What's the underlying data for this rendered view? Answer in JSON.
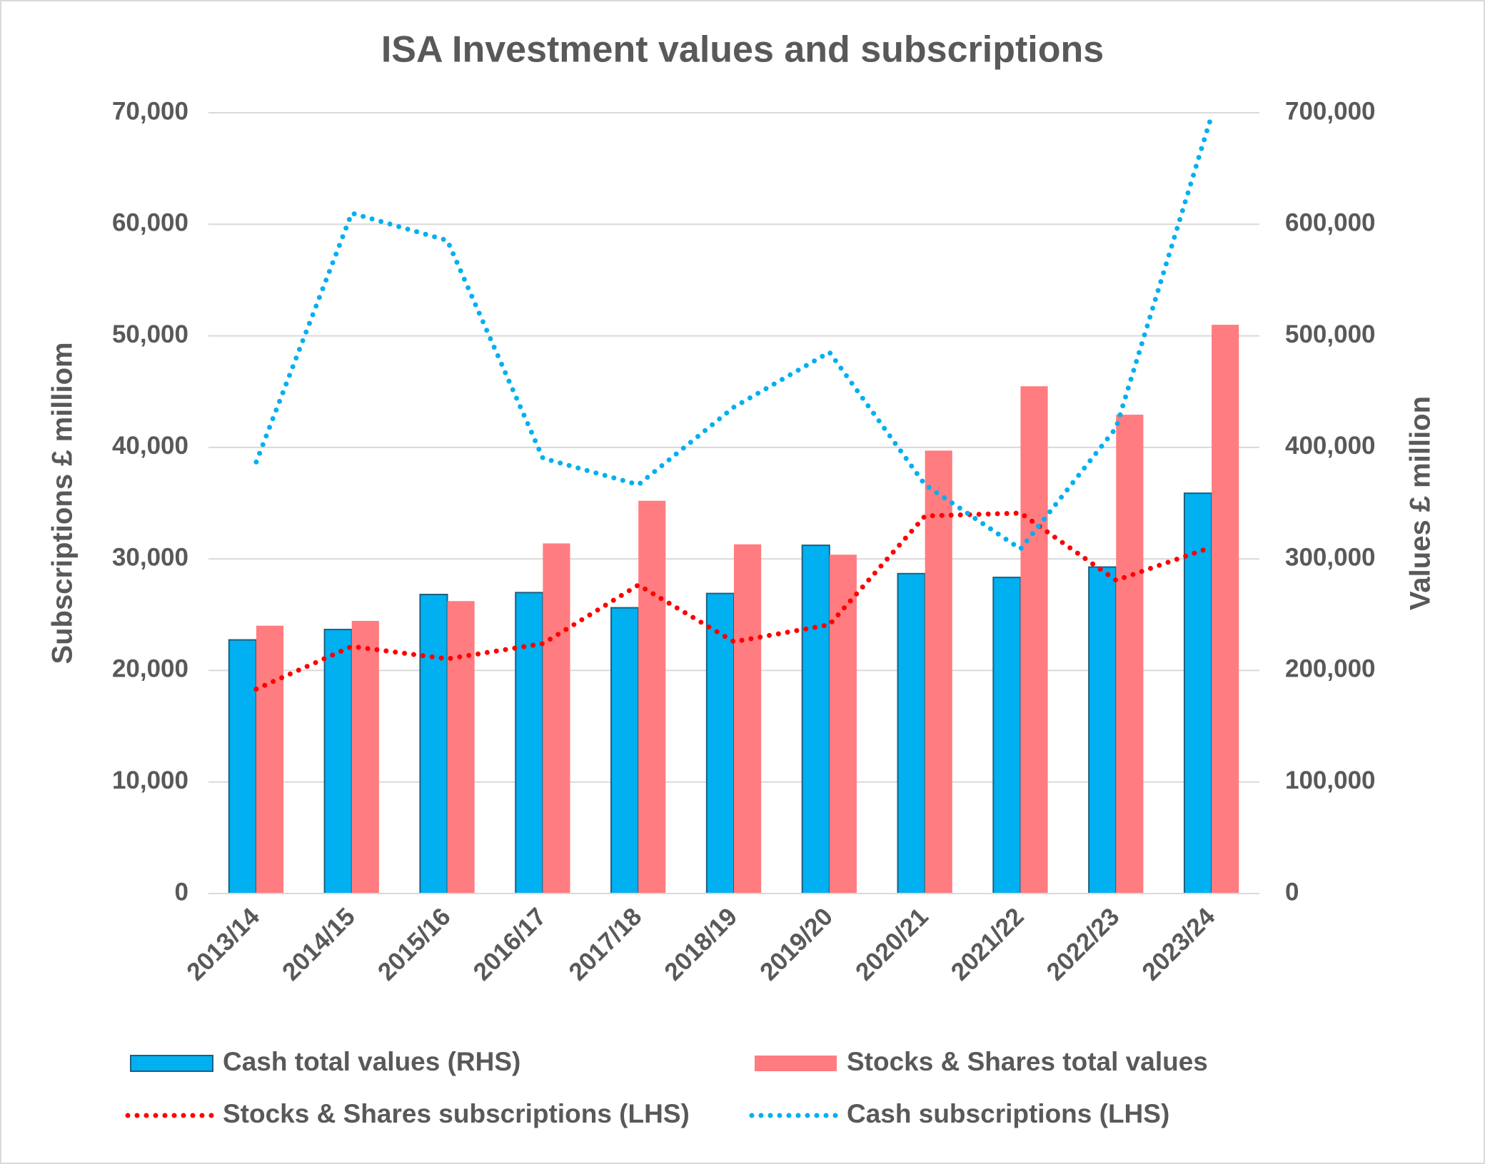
{
  "chart_data": {
    "type": "bar",
    "title": "ISA Investment values and subscriptions",
    "y_label": "Subscriptions £ milliom",
    "y2_label": "Values £ million",
    "categories": [
      "2013/14",
      "2014/15",
      "2015/16",
      "2016/17",
      "2017/18",
      "2018/19",
      "2019/20",
      "2020/21",
      "2021/22",
      "2022/23",
      "2023/24"
    ],
    "series": [
      {
        "name": "Cash total values (RHS)",
        "type": "bar",
        "axis": "y2",
        "color": "#00b0f0",
        "values": [
          227400,
          236700,
          268100,
          269800,
          256200,
          269000,
          312200,
          286800,
          283400,
          292700,
          358900
        ]
      },
      {
        "name": "Stocks & Shares total values",
        "type": "bar",
        "axis": "y2",
        "color": "#ff7c80",
        "values": [
          240100,
          244400,
          262200,
          313900,
          352100,
          313100,
          303800,
          397100,
          454800,
          429300,
          509900
        ]
      },
      {
        "name": "Stocks & Shares subscriptions (LHS)",
        "type": "line",
        "line_style": "dotted",
        "color": "#ff0000",
        "values": [
          18330,
          22150,
          21040,
          22400,
          27660,
          22570,
          24100,
          33850,
          34110,
          28080,
          31050
        ]
      },
      {
        "name": "Cash subscriptions (LHS)",
        "type": "line",
        "line_style": "dotted",
        "color": "#00b0f0",
        "values": [
          38690,
          61000,
          58550,
          39030,
          36650,
          43610,
          48530,
          36650,
          30890,
          41750,
          69750
        ]
      }
    ],
    "ylim": [
      0,
      70000
    ],
    "yticks": [
      0,
      {
        "value": 10000,
        "label": "10,000"
      },
      {
        "value": 20000,
        "label": "20,000"
      },
      {
        "value": 30000,
        "label": "30,000"
      },
      {
        "value": 40000,
        "label": "40,000"
      },
      {
        "value": 50000,
        "label": "50,000"
      },
      {
        "value": 60000,
        "label": "60,000"
      },
      {
        "value": 70000,
        "label": "70,000"
      }
    ],
    "y2lim": [
      0,
      700000
    ],
    "y2ticks": [
      0,
      {
        "value": 100000,
        "label": "100,000"
      },
      {
        "value": 200000,
        "label": "200,000"
      },
      {
        "value": 300000,
        "label": "300,000"
      },
      {
        "value": 400000,
        "label": "400,000"
      },
      {
        "value": 500000,
        "label": "500,000"
      },
      {
        "value": 600000,
        "label": "600,000"
      },
      {
        "value": 700000,
        "label": "700,000"
      }
    ],
    "grid": true,
    "legend": "bottom"
  }
}
